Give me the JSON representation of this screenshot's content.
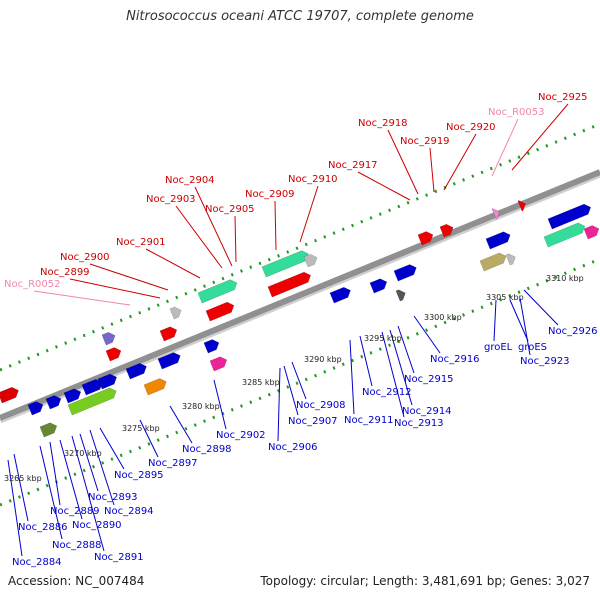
{
  "title": "Nitrosococcus oceani ATCC 19707, complete genome",
  "colors": {
    "top_label": "#cc0000",
    "bottom_label": "#0000cc",
    "rna_label": "#ee88aa",
    "backbone": "#909090",
    "dot_track": "#229922"
  },
  "top_genes": [
    "Noc_R0052",
    "Noc_2899",
    "Noc_2900",
    "Noc_2901",
    "Noc_2903",
    "Noc_2904",
    "Noc_2905",
    "Noc_2909",
    "Noc_2910",
    "Noc_2917",
    "Noc_2918",
    "Noc_2919",
    "Noc_2920",
    "Noc_R0053",
    "Noc_2925"
  ],
  "bottom_genes": [
    "Noc_2884",
    "Noc_2886",
    "Noc_2888",
    "Noc_2889",
    "Noc_2890",
    "Noc_2891",
    "Noc_2893",
    "Noc_2894",
    "Noc_2895",
    "Noc_2897",
    "Noc_2898",
    "Noc_2902",
    "Noc_2906",
    "Noc_2907",
    "Noc_2908",
    "Noc_2911",
    "Noc_2912",
    "Noc_2913",
    "Noc_2914",
    "Noc_2915",
    "Noc_2916",
    "groEL",
    "groES",
    "Noc_2923",
    "Noc_2926"
  ],
  "ticks": [
    "3265 kbp",
    "3270 kbp",
    "3275 kbp",
    "3280 kbp",
    "3285 kbp",
    "3290 kbp",
    "3295 kbp",
    "3300 kbp",
    "3305 kbp",
    "3310 kbp"
  ],
  "accession": "Accession: NC_007484",
  "topology": "Topology: circular; Length: 3,481,691 bp; Genes: 3,027"
}
